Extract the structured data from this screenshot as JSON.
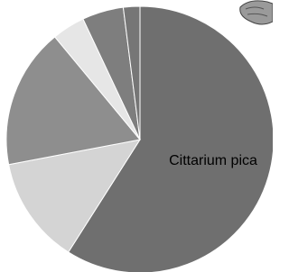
{
  "chart_data": {
    "type": "pie",
    "categories": [
      "Cittarium pica",
      null,
      null,
      null,
      null,
      null
    ],
    "values": [
      59,
      13,
      17,
      4,
      5,
      2
    ],
    "colors": [
      "#6f6f6f",
      "#d4d4d4",
      "#8e8e8e",
      "#e6e6e6",
      "#7e7e7e",
      "#767676"
    ]
  }
}
